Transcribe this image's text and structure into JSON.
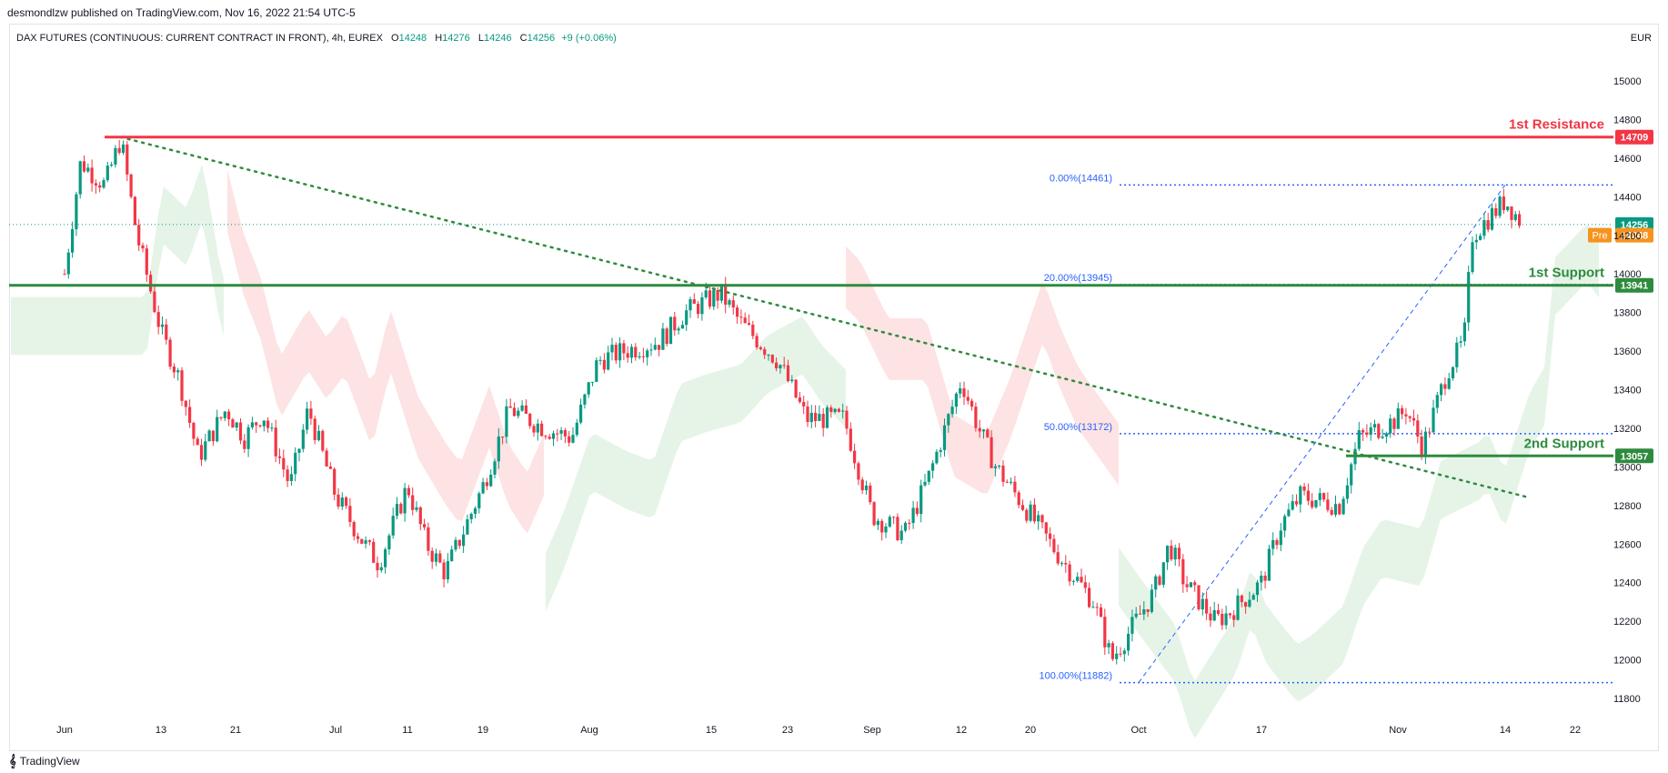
{
  "header": {
    "published": "desmondlzw published on TradingView.com, Nov 16, 2022 21:54 UTC-5"
  },
  "symbol": {
    "name": "DAX FUTURES (CONTINUOUS: CURRENT CONTRACT IN FRONT), 4h, EUREX",
    "open_label": "O",
    "open": "14248",
    "high_label": "H",
    "high": "14276",
    "low_label": "L",
    "low": "14246",
    "close_label": "C",
    "close": "14256",
    "change": "+9 (+0.06%)"
  },
  "currency": "EUR",
  "footer": {
    "brand": "TradingView"
  },
  "colors": {
    "up": "#089981",
    "down": "#f23645",
    "resistance": "#f23645",
    "support": "#2e8b3e",
    "fib": "#2962ff",
    "trend": "#2e8b3e",
    "cloud_bull": "#e6f4e8",
    "cloud_bear": "#fde3e3",
    "pre": "#f7931e"
  },
  "chart_data": {
    "type": "candlestick",
    "y_range": [
      11700,
      15200
    ],
    "y_ticks": [
      11800,
      12000,
      12200,
      12400,
      12600,
      12800,
      13000,
      13200,
      13400,
      13600,
      13800,
      14000,
      14200,
      14400,
      14600,
      14800,
      15000
    ],
    "x_labels": [
      "Jun",
      "13",
      "21",
      "Jul",
      "11",
      "19",
      "Aug",
      "15",
      "23",
      "Sep",
      "12",
      "20",
      "Oct",
      "17",
      "Nov",
      "14",
      "22"
    ],
    "levels": [
      {
        "name": "1st Resistance",
        "value": 14709,
        "label": "14709",
        "color": "#f23645"
      },
      {
        "name": "1st Support",
        "value": 13941,
        "label": "13941",
        "color": "#2e8b3e"
      },
      {
        "name": "2nd Support",
        "value": 13057,
        "label": "13057",
        "color": "#2e8b3e"
      }
    ],
    "fib_levels": [
      {
        "label": "0.00%(14461)",
        "value": 14461
      },
      {
        "label": "20.00%(13945)",
        "value": 13945
      },
      {
        "label": "50.00%(13172)",
        "value": 13172
      },
      {
        "label": "100.00%(11882)",
        "value": 11882
      }
    ],
    "last_price": {
      "value": 14256,
      "label": "14256"
    },
    "pre_market": {
      "tag": "Pre",
      "value": 14248,
      "label": "14248"
    },
    "price_path": [
      [
        "Jun 1",
        14000
      ],
      [
        "Jun 3",
        14580
      ],
      [
        "Jun 6",
        14460
      ],
      [
        "Jun 8",
        14700
      ],
      [
        "Jun 10",
        14200
      ],
      [
        "Jun 13",
        13700
      ],
      [
        "Jun 15",
        13450
      ],
      [
        "Jun 17",
        13050
      ],
      [
        "Jun 20",
        13300
      ],
      [
        "Jun 22",
        13150
      ],
      [
        "Jun 24",
        13280
      ],
      [
        "Jun 27",
        12900
      ],
      [
        "Jun 29",
        13300
      ],
      [
        "Jul 1",
        12850
      ],
      [
        "Jul 5",
        12600
      ],
      [
        "Jul 7",
        12500
      ],
      [
        "Jul 11",
        12900
      ],
      [
        "Jul 13",
        12600
      ],
      [
        "Jul 15",
        12450
      ],
      [
        "Jul 19",
        12900
      ],
      [
        "Jul 22",
        13300
      ],
      [
        "Jul 26",
        13200
      ],
      [
        "Jul 29",
        13150
      ],
      [
        "Aug 2",
        13550
      ],
      [
        "Aug 5",
        13600
      ],
      [
        "Aug 9",
        13650
      ],
      [
        "Aug 12",
        13800
      ],
      [
        "Aug 16",
        13900
      ],
      [
        "Aug 18",
        13750
      ],
      [
        "Aug 22",
        13550
      ],
      [
        "Aug 25",
        13250
      ],
      [
        "Aug 29",
        13250
      ],
      [
        "Sep 1",
        12750
      ],
      [
        "Sep 5",
        12650
      ],
      [
        "Sep 8",
        12950
      ],
      [
        "Sep 12",
        13450
      ],
      [
        "Sep 14",
        13200
      ],
      [
        "Sep 16",
        13000
      ],
      [
        "Sep 20",
        12750
      ],
      [
        "Sep 23",
        12550
      ],
      [
        "Sep 27",
        12300
      ],
      [
        "Sep 29",
        12000
      ],
      [
        "Oct 3",
        12350
      ],
      [
        "Oct 5",
        12600
      ],
      [
        "Oct 7",
        12400
      ],
      [
        "Oct 11",
        12200
      ],
      [
        "Oct 13",
        12250
      ],
      [
        "Oct 17",
        12400
      ],
      [
        "Oct 19",
        12700
      ],
      [
        "Oct 21",
        12850
      ],
      [
        "Oct 25",
        12800
      ],
      [
        "Oct 27",
        13150
      ],
      [
        "Oct 31",
        13250
      ],
      [
        "Nov 2",
        13300
      ],
      [
        "Nov 4",
        13100
      ],
      [
        "Nov 7",
        13500
      ],
      [
        "Nov 9",
        13650
      ],
      [
        "Nov 10",
        14200
      ],
      [
        "Nov 14",
        14380
      ],
      [
        "Nov 16",
        14256
      ]
    ]
  }
}
